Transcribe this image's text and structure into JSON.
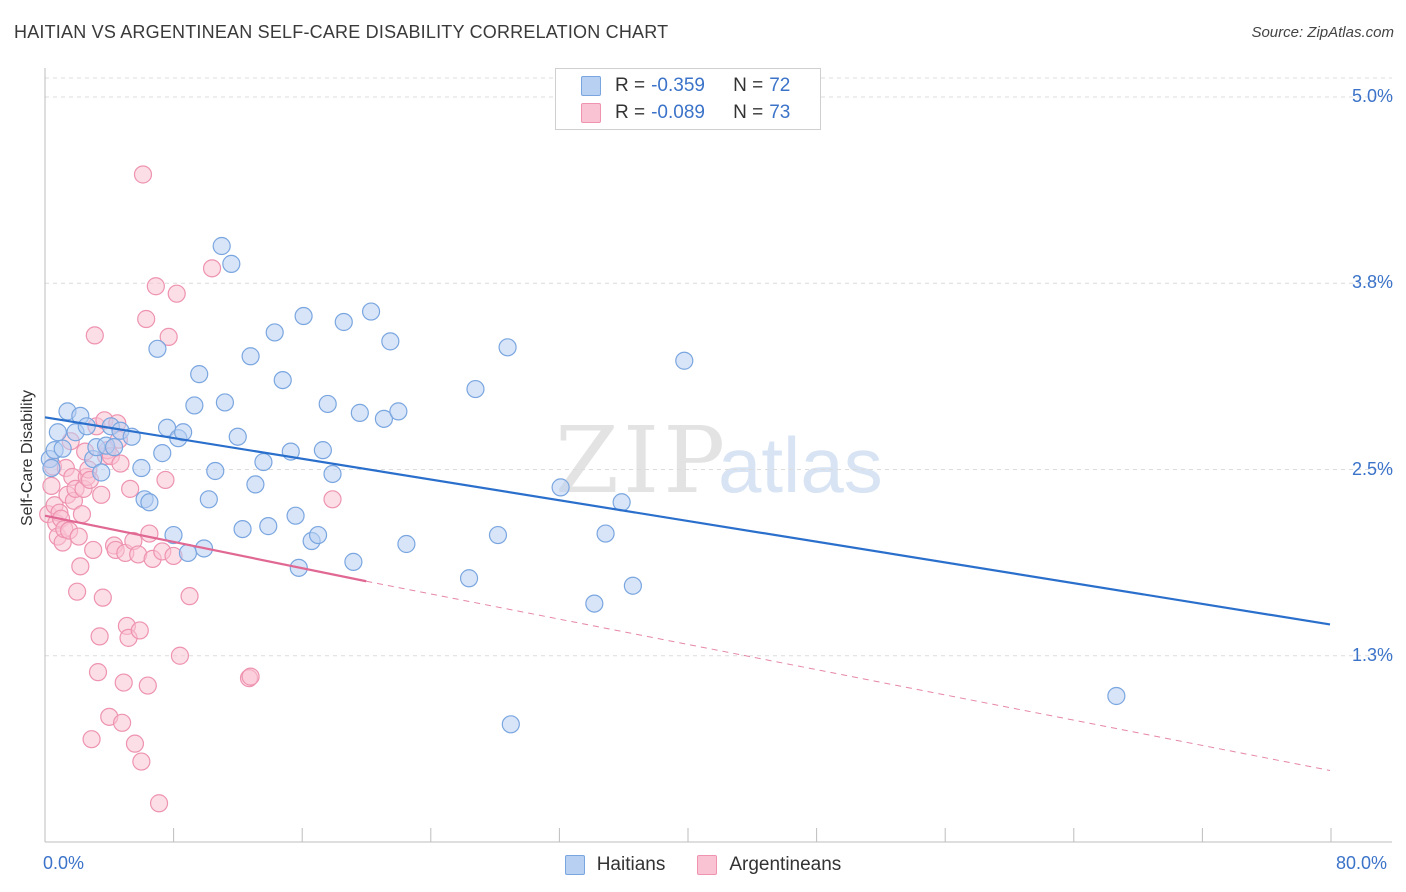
{
  "title": "HAITIAN VS ARGENTINEAN SELF-CARE DISABILITY CORRELATION CHART",
  "source": "Source: ZipAtlas.com",
  "watermark": {
    "zip": "ZIP",
    "atlas": "atlas"
  },
  "legend": {
    "r_label": "R =",
    "n_label": "N =",
    "haitians": {
      "r": "-0.359",
      "n": "72"
    },
    "argentineans": {
      "r": "-0.089",
      "n": "73"
    }
  },
  "colors": {
    "haitians_fill": "#b8d0f2",
    "haitians_stroke": "#7aa6e0",
    "haitians_line": "#2a6fcc",
    "argentineans_fill": "#f9c3d3",
    "argentineans_stroke": "#ee93b0",
    "argentineans_line": "#e06893",
    "tick_text": "#3b73c9",
    "grid": "#dcdcdc"
  },
  "chart_data": {
    "type": "scatter",
    "title": "HAITIAN VS ARGENTINEAN SELF-CARE DISABILITY CORRELATION CHART",
    "xlabel": "",
    "ylabel": "Self-Care Disability",
    "xlim": [
      0,
      80
    ],
    "ylim": [
      0,
      5.2
    ],
    "x_tick_labels": [
      "0.0%",
      "80.0%"
    ],
    "y_ticks": [
      1.25,
      2.5,
      3.75,
      5.0
    ],
    "y_tick_labels": [
      "1.3%",
      "2.5%",
      "3.8%",
      "5.0%"
    ],
    "grid": true,
    "legend_position": "bottom-center",
    "series": [
      {
        "name": "Haitians",
        "r": -0.359,
        "n": 72,
        "trend": {
          "x0": 0,
          "y0": 2.85,
          "x1": 80,
          "y1": 1.46
        },
        "points": [
          [
            0.3,
            2.57
          ],
          [
            0.4,
            2.51
          ],
          [
            0.6,
            2.63
          ],
          [
            0.8,
            2.75
          ],
          [
            1.1,
            2.64
          ],
          [
            1.4,
            2.89
          ],
          [
            1.9,
            2.75
          ],
          [
            2.2,
            2.86
          ],
          [
            2.6,
            2.79
          ],
          [
            3.0,
            2.57
          ],
          [
            3.2,
            2.65
          ],
          [
            3.5,
            2.48
          ],
          [
            3.8,
            2.66
          ],
          [
            4.1,
            2.79
          ],
          [
            4.3,
            2.65
          ],
          [
            4.7,
            2.76
          ],
          [
            5.4,
            2.72
          ],
          [
            6.0,
            2.51
          ],
          [
            6.2,
            2.3
          ],
          [
            6.5,
            2.28
          ],
          [
            7.0,
            3.31
          ],
          [
            7.3,
            2.61
          ],
          [
            7.6,
            2.78
          ],
          [
            8.0,
            2.06
          ],
          [
            8.3,
            2.71
          ],
          [
            8.6,
            2.75
          ],
          [
            8.9,
            1.94
          ],
          [
            9.3,
            2.93
          ],
          [
            9.6,
            3.14
          ],
          [
            9.9,
            1.97
          ],
          [
            10.2,
            2.3
          ],
          [
            10.6,
            2.49
          ],
          [
            11.0,
            4.0
          ],
          [
            11.2,
            2.95
          ],
          [
            11.6,
            3.88
          ],
          [
            12.0,
            2.72
          ],
          [
            12.3,
            2.1
          ],
          [
            12.8,
            3.26
          ],
          [
            13.1,
            2.4
          ],
          [
            13.6,
            2.55
          ],
          [
            13.9,
            2.12
          ],
          [
            14.3,
            3.42
          ],
          [
            14.8,
            3.1
          ],
          [
            15.3,
            2.62
          ],
          [
            15.6,
            2.19
          ],
          [
            15.8,
            1.84
          ],
          [
            16.1,
            3.53
          ],
          [
            16.6,
            2.02
          ],
          [
            17.0,
            2.06
          ],
          [
            17.3,
            2.63
          ],
          [
            17.6,
            2.94
          ],
          [
            17.9,
            2.47
          ],
          [
            18.6,
            3.49
          ],
          [
            19.2,
            1.88
          ],
          [
            19.6,
            2.88
          ],
          [
            20.3,
            3.56
          ],
          [
            21.1,
            2.84
          ],
          [
            21.5,
            3.36
          ],
          [
            22.0,
            2.89
          ],
          [
            22.5,
            2.0
          ],
          [
            26.4,
            1.77
          ],
          [
            26.8,
            3.04
          ],
          [
            28.2,
            2.06
          ],
          [
            28.8,
            3.32
          ],
          [
            29.0,
            0.79
          ],
          [
            32.1,
            2.38
          ],
          [
            34.2,
            1.6
          ],
          [
            34.9,
            2.07
          ],
          [
            35.9,
            2.28
          ],
          [
            36.6,
            1.72
          ],
          [
            39.8,
            3.23
          ],
          [
            66.7,
            0.98
          ]
        ]
      },
      {
        "name": "Argentineans",
        "r": -0.089,
        "n": 73,
        "trend": {
          "x0": 0,
          "y0": 2.19,
          "x1": 20,
          "y1": 1.75,
          "dash_to_x": 80,
          "dash_to_y": 0.48
        },
        "points": [
          [
            0.2,
            2.2
          ],
          [
            0.4,
            2.39
          ],
          [
            0.5,
            2.52
          ],
          [
            0.6,
            2.26
          ],
          [
            0.7,
            2.14
          ],
          [
            0.8,
            2.05
          ],
          [
            0.9,
            2.21
          ],
          [
            1.0,
            2.17
          ],
          [
            1.1,
            2.01
          ],
          [
            1.2,
            2.1
          ],
          [
            1.3,
            2.51
          ],
          [
            1.4,
            2.33
          ],
          [
            1.5,
            2.09
          ],
          [
            1.6,
            2.69
          ],
          [
            1.7,
            2.45
          ],
          [
            1.8,
            2.29
          ],
          [
            1.9,
            2.37
          ],
          [
            2.0,
            1.68
          ],
          [
            2.1,
            2.05
          ],
          [
            2.2,
            1.85
          ],
          [
            2.3,
            2.2
          ],
          [
            2.4,
            2.37
          ],
          [
            2.5,
            2.62
          ],
          [
            2.6,
            2.45
          ],
          [
            2.7,
            2.5
          ],
          [
            2.8,
            2.43
          ],
          [
            2.9,
            0.69
          ],
          [
            3.0,
            1.96
          ],
          [
            3.1,
            3.4
          ],
          [
            3.2,
            2.79
          ],
          [
            3.3,
            1.14
          ],
          [
            3.4,
            1.38
          ],
          [
            3.5,
            2.33
          ],
          [
            3.6,
            1.64
          ],
          [
            3.7,
            2.83
          ],
          [
            3.8,
            2.59
          ],
          [
            3.9,
            2.63
          ],
          [
            4.0,
            0.84
          ],
          [
            4.1,
            2.59
          ],
          [
            4.3,
            1.99
          ],
          [
            4.4,
            1.96
          ],
          [
            4.5,
            2.81
          ],
          [
            4.6,
            2.7
          ],
          [
            4.7,
            2.54
          ],
          [
            4.8,
            0.8
          ],
          [
            4.9,
            1.07
          ],
          [
            5.0,
            1.94
          ],
          [
            5.1,
            1.45
          ],
          [
            5.2,
            1.37
          ],
          [
            5.3,
            2.37
          ],
          [
            5.5,
            2.02
          ],
          [
            5.6,
            0.66
          ],
          [
            5.8,
            1.93
          ],
          [
            5.9,
            1.42
          ],
          [
            6.0,
            0.54
          ],
          [
            6.1,
            4.48
          ],
          [
            6.3,
            3.51
          ],
          [
            6.4,
            1.05
          ],
          [
            6.5,
            2.07
          ],
          [
            6.7,
            1.9
          ],
          [
            6.9,
            3.73
          ],
          [
            7.1,
            0.26
          ],
          [
            7.3,
            1.95
          ],
          [
            7.5,
            2.43
          ],
          [
            7.7,
            3.39
          ],
          [
            8.0,
            1.92
          ],
          [
            8.2,
            3.68
          ],
          [
            8.4,
            1.25
          ],
          [
            9.0,
            1.65
          ],
          [
            10.4,
            3.85
          ],
          [
            12.7,
            1.1
          ],
          [
            12.8,
            1.11
          ],
          [
            17.9,
            2.3
          ]
        ]
      }
    ]
  }
}
